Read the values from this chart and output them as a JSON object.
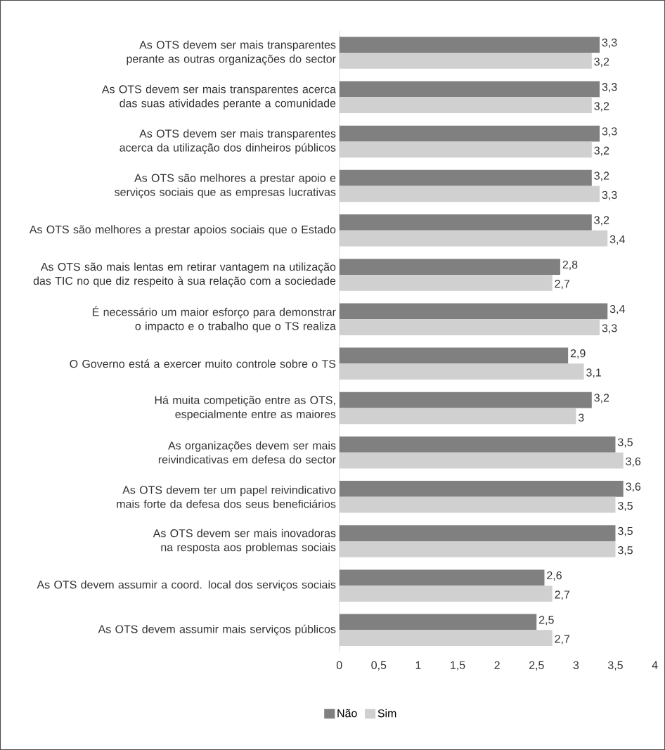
{
  "chart_data": {
    "type": "bar",
    "orientation": "horizontal",
    "categories": [
      "As OTS devem ser mais transparentes perante as outras organizações do sector",
      "As OTS devem ser mais transparentes acerca das suas atividades perante a comunidade",
      "As OTS devem ser mais transparentes acerca da utilização dos dinheiros públicos",
      "As OTS são melhores a prestar apoio e serviços sociais que as empresas lucrativas",
      "As OTS são melhores a prestar apoios sociais que o Estado",
      "As OTS são mais lentas em retirar vantagem na utilização das TIC no que diz respeito à sua relação com a sociedade",
      "É necessário um maior esforço para demonstrar o impacto e o trabalho que o TS  realiza",
      "O Governo está a exercer muito controle sobre o TS",
      "Há muita competição entre as OTS, especialmente entre as maiores",
      "As organizações devem ser mais reivindicativas em defesa do sector",
      "As OTS devem ter um papel reivindicativo mais forte da defesa dos seus beneficiários",
      "As OTS devem ser mais inovadoras na resposta aos problemas sociais",
      "As OTS devem assumir a coord. local dos serviços sociais",
      "As OTS devem assumir mais serviços públicos"
    ],
    "series": [
      {
        "name": "Não",
        "color": "#808080",
        "values": [
          3.3,
          3.3,
          3.3,
          3.2,
          3.2,
          2.8,
          3.4,
          2.9,
          3.2,
          3.5,
          3.6,
          3.5,
          2.6,
          2.5
        ],
        "value_labels": [
          "3,3",
          "3,3",
          "3,3",
          "3,2",
          "3,2",
          "2,8",
          "3,4",
          "2,9",
          "3,2",
          "3,5",
          "3,6",
          "3,5",
          "2,6",
          "2,5"
        ]
      },
      {
        "name": "Sim",
        "color": "#d0d0d0",
        "values": [
          3.2,
          3.2,
          3.2,
          3.3,
          3.4,
          2.7,
          3.3,
          3.1,
          3,
          3.6,
          3.5,
          3.5,
          2.7,
          2.7
        ],
        "value_labels": [
          "3,2",
          "3,2",
          "3,2",
          "3,3",
          "3,4",
          "2,7",
          "3,3",
          "3,1",
          "3",
          "3,6",
          "3,5",
          "3,5",
          "2,7",
          "2,7"
        ]
      }
    ],
    "xlim": [
      0,
      4
    ],
    "xticks": [
      0,
      {
        "value": 0.5,
        "label": "0,5"
      },
      1,
      {
        "value": 1.5,
        "label": "1,5"
      },
      2,
      {
        "value": 2.5,
        "label": "2,5"
      },
      3,
      {
        "value": 3.5,
        "label": "3,5"
      },
      4
    ],
    "legend": "bottom"
  }
}
